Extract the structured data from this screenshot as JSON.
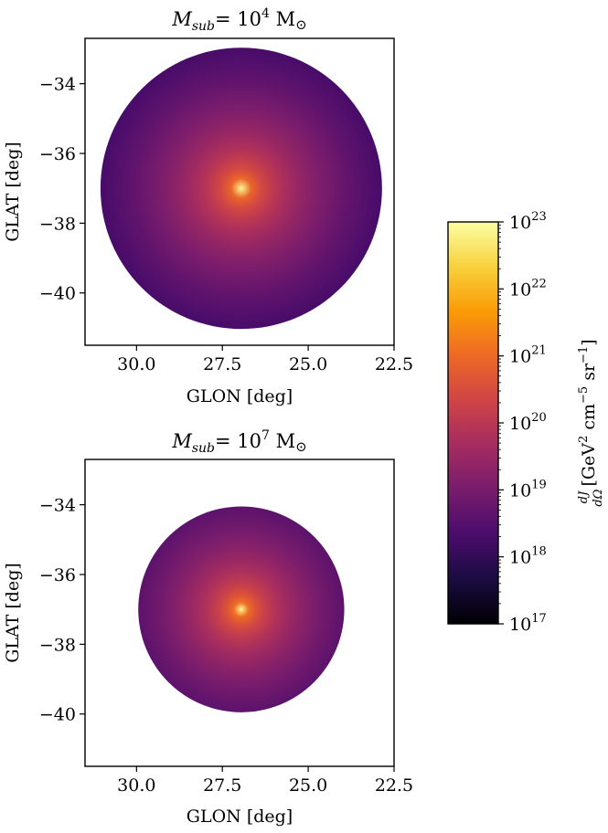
{
  "chart_data": [
    {
      "type": "heatmap",
      "title": "M_sub = 10^4 M_⊙",
      "title_parts": {
        "m": "M",
        "sub": "sub",
        "eq": "= 10",
        "exp": "4",
        "unit": " M",
        "sun": "⊙"
      },
      "xlabel": "GLON [deg]",
      "ylabel": "GLAT [deg]",
      "xlim": [
        31.5,
        22.5
      ],
      "ylim": [
        -41.5,
        -32.7
      ],
      "x_ticks": [
        {
          "value": 30.0,
          "label": "30.0"
        },
        {
          "value": 27.5,
          "label": "27.5"
        },
        {
          "value": 25.0,
          "label": "25.0"
        },
        {
          "value": 22.5,
          "label": "22.5"
        }
      ],
      "y_ticks": [
        {
          "value": -34,
          "label": "−34"
        },
        {
          "value": -36,
          "label": "−36"
        },
        {
          "value": -38,
          "label": "−38"
        },
        {
          "value": -40,
          "label": "−40"
        }
      ],
      "disk": {
        "center_glon": 26.95,
        "center_glat": -37.0,
        "radius_deg": 4.1,
        "peak_log10": 22.9,
        "edge_log10": 18.3
      },
      "grid": false
    },
    {
      "type": "heatmap",
      "title": "M_sub = 10^7 M_⊙",
      "title_parts": {
        "m": "M",
        "sub": "sub",
        "eq": "= 10",
        "exp": "7",
        "unit": " M",
        "sun": "⊙"
      },
      "xlabel": "GLON [deg]",
      "ylabel": "GLAT [deg]",
      "xlim": [
        31.5,
        22.5
      ],
      "ylim": [
        -41.5,
        -32.7
      ],
      "x_ticks": [
        {
          "value": 30.0,
          "label": "30.0"
        },
        {
          "value": 27.5,
          "label": "27.5"
        },
        {
          "value": 25.0,
          "label": "25.0"
        },
        {
          "value": 22.5,
          "label": "22.5"
        }
      ],
      "y_ticks": [
        {
          "value": -34,
          "label": "−34"
        },
        {
          "value": -36,
          "label": "−36"
        },
        {
          "value": -38,
          "label": "−38"
        },
        {
          "value": -40,
          "label": "−40"
        }
      ],
      "disk": {
        "center_glon": 26.95,
        "center_glat": -37.0,
        "radius_deg": 3.0,
        "peak_log10": 22.9,
        "edge_log10": 18.6
      },
      "grid": false
    }
  ],
  "colorbar": {
    "scale": "log",
    "min_log10": 17,
    "max_log10": 23,
    "ticks": [
      {
        "exp": 17,
        "base": "10",
        "sup": "17"
      },
      {
        "exp": 18,
        "base": "10",
        "sup": "18"
      },
      {
        "exp": 19,
        "base": "10",
        "sup": "19"
      },
      {
        "exp": 20,
        "base": "10",
        "sup": "20"
      },
      {
        "exp": 21,
        "base": "10",
        "sup": "21"
      },
      {
        "exp": 22,
        "base": "10",
        "sup": "22"
      },
      {
        "exp": 23,
        "base": "10",
        "sup": "23"
      }
    ],
    "label": {
      "frac_num": "dJ",
      "frac_den": "dΩ",
      "unit": "[GeV",
      "sq": "2",
      "cm": " cm",
      "cm_exp": "−5",
      "sr": " sr",
      "sr_exp": "−1",
      "close": "]"
    },
    "colormap": "inferno",
    "colormap_stops": [
      "#000004",
      "#1b0c41",
      "#4a0c6b",
      "#781c6d",
      "#a52c60",
      "#cf4446",
      "#ed6925",
      "#fb9b06",
      "#f7d13d",
      "#fcffa4"
    ]
  }
}
